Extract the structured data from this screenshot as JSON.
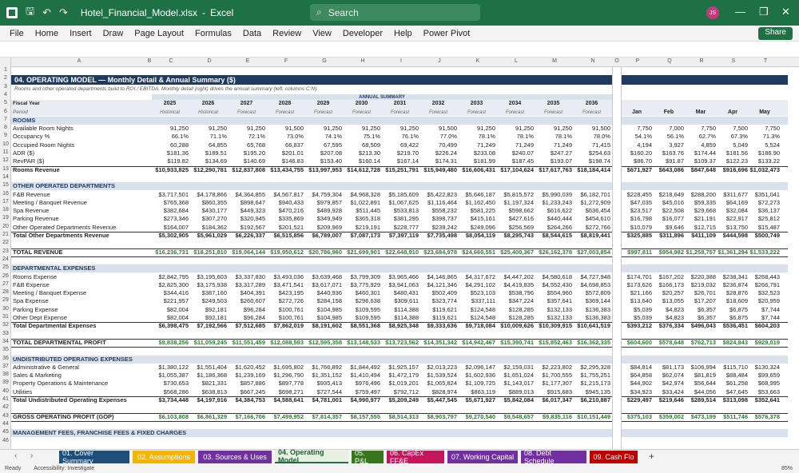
{
  "window": {
    "filename": "Hotel_Financial_Model.xlsx",
    "app": "Excel",
    "search_placeholder": "Search",
    "user_initials": "JS"
  },
  "ribbon": [
    "File",
    "Home",
    "Insert",
    "Draw",
    "Page Layout",
    "Formulas",
    "Data",
    "Review",
    "View",
    "Developer",
    "Help",
    "Power Pivot"
  ],
  "share_label": "Share",
  "columns": [
    "A",
    "B",
    "C",
    "D",
    "E",
    "F",
    "G",
    "H",
    "I",
    "J",
    "K",
    "L",
    "M",
    "N",
    "O",
    "P",
    "Q",
    "R",
    "S",
    "T"
  ],
  "title": "04. OPERATING MODEL — Monthly Detail & Annual Summary ($)",
  "subtitle": "Rooms and other operated departments build to ROI / EBITDA. Monthly detail (right) drives the annual summary (left, columns C:N).",
  "annual_summary_label": "ANNUAL SUMMARY",
  "fiscal_year_label": "Fiscal Year",
  "period_label": "Period",
  "years": [
    "2025",
    "2026",
    "2027",
    "2028",
    "2029",
    "2030",
    "2031",
    "2032",
    "2033",
    "2034",
    "2035",
    "2036"
  ],
  "periods": [
    "Historical",
    "Historical",
    "Forecast",
    "Forecast",
    "Forecast",
    "Forecast",
    "Forecast",
    "Forecast",
    "Forecast",
    "Forecast",
    "Forecast",
    "Forecast"
  ],
  "months": [
    "Jan",
    "Feb",
    "Mar",
    "Apr",
    "May"
  ],
  "rows": [
    {
      "r": 7,
      "type": "section",
      "label": "ROOMS"
    },
    {
      "r": 8,
      "label": "Available Room Nights",
      "a": [
        "91,250",
        "91,250",
        "91,250",
        "91,500",
        "91,250",
        "91,250",
        "91,250",
        "91,500",
        "91,250",
        "91,250",
        "91,250",
        "91,500"
      ],
      "m": [
        "7,750",
        "7,000",
        "7,750",
        "7,500",
        "7,750"
      ]
    },
    {
      "r": 9,
      "label": "Occupancy %",
      "a": [
        "66.1%",
        "71.1%",
        "72.1%",
        "73.0%",
        "74.1%",
        "75.1%",
        "76.1%",
        "77.0%",
        "78.1%",
        "78.1%",
        "78.1%",
        "78.0%"
      ],
      "m": [
        "54.1%",
        "56.1%",
        "62.7%",
        "67.3%",
        "71.3%"
      ]
    },
    {
      "r": 10,
      "label": "Occupied Room Nights",
      "a": [
        "60,288",
        "64,855",
        "65,768",
        "66,837",
        "67,595",
        "68,509",
        "69,422",
        "70,499",
        "71,249",
        "71,249",
        "71,249",
        "71,415"
      ],
      "m": [
        "4,194",
        "3,927",
        "4,859",
        "5,049",
        "5,524"
      ]
    },
    {
      "r": 11,
      "label": "ADR ($)",
      "a": [
        "$181.36",
        "$189.51",
        "$195.20",
        "$201.01",
        "$207.08",
        "$213.30",
        "$219.70",
        "$226.24",
        "$233.08",
        "$240.07",
        "$247.27",
        "$254.63"
      ],
      "m": [
        "$160.20",
        "$163.76",
        "$174.44",
        "$181.56",
        "$186.90"
      ]
    },
    {
      "r": 12,
      "label": "RevPAR ($)",
      "a": [
        "$119.82",
        "$134.69",
        "$140.69",
        "$146.83",
        "$153.40",
        "$160.14",
        "$167.14",
        "$174.31",
        "$181.99",
        "$187.45",
        "$193.07",
        "$198.74"
      ],
      "m": [
        "$86.70",
        "$91.87",
        "$109.37",
        "$122.23",
        "$133.22"
      ]
    },
    {
      "r": 13,
      "type": "total",
      "label": "Rooms Revenue",
      "a": [
        "$10,933,825",
        "$12,290,781",
        "$12,837,808",
        "$13,434,755",
        "$13,997,953",
        "$14,612,728",
        "$15,251,791",
        "$15,949,480",
        "$16,606,431",
        "$17,104,624",
        "$17,617,763",
        "$18,184,414"
      ],
      "m": [
        "$671,927",
        "$643,086",
        "$847,648",
        "$916,696",
        "$1,032,473"
      ]
    },
    {
      "r": 15,
      "type": "section",
      "label": "OTHER OPERATED DEPARTMENTS"
    },
    {
      "r": 16,
      "label": "F&B Revenue",
      "a": [
        "$3,717,501",
        "$4,178,866",
        "$4,364,855",
        "$4,567,817",
        "$4,759,304",
        "$4,968,328",
        "$5,185,609",
        "$5,422,823",
        "$5,646,187",
        "$5,815,572",
        "$5,990,039",
        "$6,182,701"
      ],
      "m": [
        "$228,455",
        "$218,649",
        "$288,200",
        "$311,677",
        "$351,041"
      ]
    },
    {
      "r": 17,
      "label": "Meeting / Banquet Revenue",
      "a": [
        "$765,368",
        "$860,355",
        "$898,647",
        "$940,433",
        "$979,857",
        "$1,022,891",
        "$1,067,625",
        "$1,116,464",
        "$1,162,450",
        "$1,197,324",
        "$1,233,243",
        "$1,272,909"
      ],
      "m": [
        "$47,035",
        "$45,016",
        "$59,335",
        "$64,169",
        "$72,273"
      ]
    },
    {
      "r": 18,
      "label": "Spa Revenue",
      "a": [
        "$382,684",
        "$430,177",
        "$449,323",
        "$470,216",
        "$489,928",
        "$511,445",
        "$533,813",
        "$558,232",
        "$581,225",
        "$598,662",
        "$616,622",
        "$636,454"
      ],
      "m": [
        "$23,517",
        "$22,508",
        "$29,668",
        "$32,084",
        "$36,137"
      ]
    },
    {
      "r": 19,
      "label": "Parking Revenue",
      "a": [
        "$273,346",
        "$307,270",
        "$320,945",
        "$335,869",
        "$349,949",
        "$365,318",
        "$381,295",
        "$398,737",
        "$415,161",
        "$427,616",
        "$440,444",
        "$454,610"
      ],
      "m": [
        "$16,798",
        "$16,077",
        "$21,191",
        "$22,917",
        "$25,812"
      ]
    },
    {
      "r": 20,
      "label": "Other Operated Departments Revenue",
      "a": [
        "$164,007",
        "$184,362",
        "$192,567",
        "$201,521",
        "$209,969",
        "$219,191",
        "$228,777",
        "$239,242",
        "$249,096",
        "$256,569",
        "$264,266",
        "$272,766"
      ],
      "m": [
        "$10,079",
        "$9,646",
        "$12,715",
        "$13,750",
        "$15,487"
      ]
    },
    {
      "r": 21,
      "type": "total",
      "label": "Total Other Departments Revenue",
      "a": [
        "$5,302,905",
        "$5,961,029",
        "$6,226,337",
        "$6,515,856",
        "$6,789,007",
        "$7,087,173",
        "$7,397,119",
        "$7,735,498",
        "$8,054,119",
        "$8,295,743",
        "$8,544,615",
        "$8,819,441"
      ],
      "m": [
        "$325,885",
        "$311,896",
        "$411,109",
        "$444,598",
        "$500,749"
      ]
    },
    {
      "r": 23,
      "type": "grand",
      "label": "TOTAL REVENUE",
      "a": [
        "$16,236,731",
        "$18,251,810",
        "$19,064,144",
        "$19,950,612",
        "$20,786,960",
        "$21,699,901",
        "$22,648,910",
        "$23,684,978",
        "$24,660,551",
        "$25,400,367",
        "$26,162,378",
        "$27,003,854"
      ],
      "m": [
        "$997,811",
        "$954,982",
        "$1,258,757",
        "$1,361,294",
        "$1,533,222"
      ]
    },
    {
      "r": 25,
      "type": "section",
      "label": "DEPARTMENTAL EXPENSES"
    },
    {
      "r": 26,
      "label": "Rooms Expense",
      "a": [
        "$2,842,795",
        "$3,195,603",
        "$3,337,830",
        "$3,493,036",
        "$3,639,468",
        "$3,799,309",
        "$3,965,466",
        "$4,146,865",
        "$4,317,672",
        "$4,447,202",
        "$4,580,618",
        "$4,727,948"
      ],
      "m": [
        "$174,701",
        "$167,202",
        "$220,388",
        "$238,341",
        "$268,443"
      ]
    },
    {
      "r": 27,
      "label": "F&B Expense",
      "a": [
        "$2,825,300",
        "$3,175,938",
        "$3,317,289",
        "$3,471,541",
        "$3,617,071",
        "$3,775,929",
        "$3,941,063",
        "$4,121,346",
        "$4,291,102",
        "$4,419,835",
        "$4,552,430",
        "$4,698,853"
      ],
      "m": [
        "$173,626",
        "$166,173",
        "$219,032",
        "$236,874",
        "$266,791"
      ]
    },
    {
      "r": 28,
      "label": "Meeting / Banquet Expense",
      "a": [
        "$344,416",
        "$387,160",
        "$404,391",
        "$423,195",
        "$440,936",
        "$460,301",
        "$480,431",
        "$502,409",
        "$523,103",
        "$538,796",
        "$554,960",
        "$572,809"
      ],
      "m": [
        "$21,166",
        "$20,257",
        "$26,701",
        "$28,876",
        "$32,523"
      ]
    },
    {
      "r": 29,
      "label": "Spa Expense",
      "a": [
        "$221,957",
        "$249,503",
        "$260,607",
        "$272,726",
        "$284,158",
        "$296,638",
        "$309,611",
        "$323,774",
        "$337,111",
        "$347,224",
        "$357,641",
        "$369,144"
      ],
      "m": [
        "$13,640",
        "$13,055",
        "$17,207",
        "$18,609",
        "$20,959"
      ]
    },
    {
      "r": 30,
      "label": "Parking Expense",
      "a": [
        "$82,004",
        "$92,181",
        "$96,284",
        "$100,761",
        "$104,985",
        "$109,595",
        "$114,388",
        "$119,621",
        "$124,548",
        "$128,285",
        "$132,133",
        "$136,383"
      ],
      "m": [
        "$5,039",
        "$4,823",
        "$6,357",
        "$6,875",
        "$7,744"
      ]
    },
    {
      "r": 31,
      "label": "Other Dept Expense",
      "a": [
        "$82,004",
        "$92,181",
        "$96,284",
        "$100,761",
        "$104,985",
        "$109,595",
        "$114,388",
        "$119,621",
        "$124,548",
        "$128,285",
        "$132,133",
        "$136,383"
      ],
      "m": [
        "$5,039",
        "$4,823",
        "$6,357",
        "$6,875",
        "$7,744"
      ]
    },
    {
      "r": 32,
      "type": "total",
      "label": "Total Departmental Expenses",
      "a": [
        "$6,398,475",
        "$7,192,566",
        "$7,512,685",
        "$7,862,019",
        "$8,191,602",
        "$8,551,368",
        "$8,925,348",
        "$9,333,636",
        "$9,718,084",
        "$10,009,626",
        "$10,309,915",
        "$10,641,519"
      ],
      "m": [
        "$393,212",
        "$376,334",
        "$496,043",
        "$536,451",
        "$604,203"
      ]
    },
    {
      "r": 34,
      "type": "grand",
      "label": "TOTAL DEPARTMENTAL PROFIT",
      "a": [
        "$9,838,256",
        "$11,059,245",
        "$11,551,459",
        "$12,088,593",
        "$12,595,358",
        "$13,148,533",
        "$13,723,562",
        "$14,351,342",
        "$14,942,467",
        "$15,390,741",
        "$15,852,463",
        "$16,362,335"
      ],
      "m": [
        "$604,600",
        "$578,648",
        "$762,713",
        "$824,843",
        "$929,019"
      ]
    },
    {
      "r": 36,
      "type": "section",
      "label": "UNDISTRIBUTED OPERATING EXPENSES"
    },
    {
      "r": 37,
      "label": "Administrative & General",
      "a": [
        "$1,380,122",
        "$1,551,404",
        "$1,620,452",
        "$1,695,802",
        "$1,766,892",
        "$1,844,492",
        "$1,925,157",
        "$2,013,223",
        "$2,096,147",
        "$2,159,031",
        "$2,223,802",
        "$2,295,328"
      ],
      "m": [
        "$84,814",
        "$81,173",
        "$106,994",
        "$115,710",
        "$130,324"
      ]
    },
    {
      "r": 38,
      "label": "Sales & Marketing",
      "a": [
        "$1,055,387",
        "$1,186,368",
        "$1,239,169",
        "$1,296,790",
        "$1,351,152",
        "$1,410,494",
        "$1,472,179",
        "$1,539,524",
        "$1,602,936",
        "$1,651,024",
        "$1,700,555",
        "$1,755,251"
      ],
      "m": [
        "$64,858",
        "$62,074",
        "$81,819",
        "$88,484",
        "$99,659"
      ]
    },
    {
      "r": 39,
      "label": "Property Operations & Maintenance",
      "a": [
        "$730,653",
        "$821,331",
        "$857,886",
        "$897,778",
        "$935,413",
        "$976,496",
        "$1,019,201",
        "$1,065,824",
        "$1,109,725",
        "$1,143,017",
        "$1,177,307",
        "$1,215,173"
      ],
      "m": [
        "$44,902",
        "$42,974",
        "$56,644",
        "$61,258",
        "$68,995"
      ]
    },
    {
      "r": 40,
      "label": "Utilities",
      "a": [
        "$568,286",
        "$638,813",
        "$667,245",
        "$698,271",
        "$727,544",
        "$759,497",
        "$792,712",
        "$828,974",
        "$863,119",
        "$889,013",
        "$915,683",
        "$945,135"
      ],
      "m": [
        "$34,923",
        "$33,424",
        "$44,056",
        "$47,645",
        "$53,663"
      ]
    },
    {
      "r": 41,
      "type": "total",
      "label": "Total Undistributed Operating Expenses",
      "a": [
        "$3,734,448",
        "$4,197,916",
        "$4,384,753",
        "$4,588,641",
        "$4,781,001",
        "$4,990,977",
        "$5,209,249",
        "$5,447,545",
        "$5,671,927",
        "$5,842,084",
        "$6,017,347",
        "$6,210,887"
      ],
      "m": [
        "$229,497",
        "$219,646",
        "$289,514",
        "$313,098",
        "$352,641"
      ]
    },
    {
      "r": 43,
      "type": "grand",
      "label": "GROSS OPERATING PROFIT (GOP)",
      "a": [
        "$6,103,808",
        "$6,861,329",
        "$7,166,706",
        "$7,499,952",
        "$7,814,357",
        "$8,157,555",
        "$8,514,313",
        "$8,903,797",
        "$9,270,540",
        "$9,548,657",
        "$9,835,116",
        "$10,151,449"
      ],
      "m": [
        "$375,103",
        "$359,002",
        "$473,199",
        "$511,746",
        "$576,378"
      ]
    },
    {
      "r": 45,
      "type": "section",
      "label": "MANAGEMENT FEES, FRANCHISE FEES & FIXED CHARGES"
    }
  ],
  "sheets": [
    {
      "label": "01. Cover Summary",
      "color": "#1f4e79"
    },
    {
      "label": "02. Assumptions",
      "color": "#f4b400"
    },
    {
      "label": "03. Sources & Uses",
      "color": "#7030a0"
    },
    {
      "label": "04. Operating Model",
      "color": "#e8f1e0"
    },
    {
      "label": "05. P&L",
      "color": "#38761d"
    },
    {
      "label": "06. CapEx FF&E",
      "color": "#c2185b"
    },
    {
      "label": "07. Working Capital",
      "color": "#7030a0"
    },
    {
      "label": "08. Debt Schedule",
      "color": "#7030a0"
    },
    {
      "label": "09. Cash Flo",
      "color": "#c00000"
    }
  ],
  "status": {
    "ready": "Ready",
    "accessibility": "Accessibility: Investigate",
    "zoom": "85%"
  }
}
